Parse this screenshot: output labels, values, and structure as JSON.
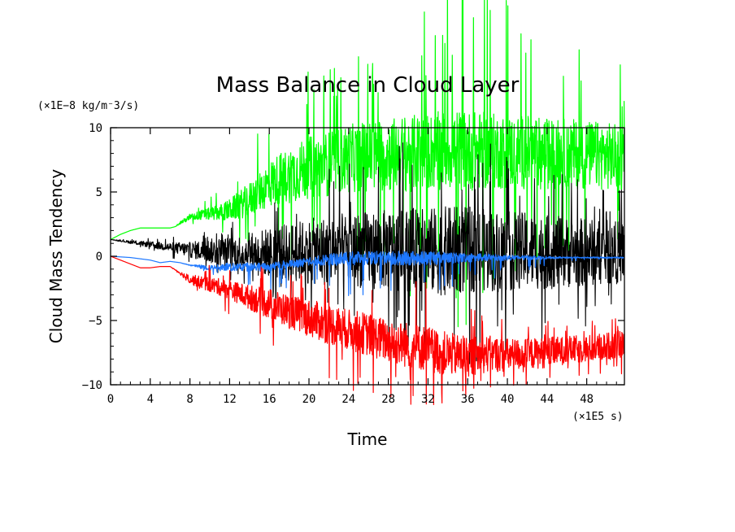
{
  "chart_data": {
    "type": "line",
    "title": "Mass Balance in Cloud Layer",
    "xlabel": "Time",
    "ylabel": "Cloud Mass Tendency",
    "x_unit": "(×1E5 s)",
    "y_unit": "(×1E−8 kg/m⁻3/s)",
    "xlim": [
      0,
      51.8
    ],
    "ylim": [
      -10,
      10
    ],
    "xticks": [
      0,
      4,
      8,
      12,
      16,
      20,
      24,
      28,
      32,
      36,
      40,
      44,
      48
    ],
    "yticks": [
      -10,
      -5,
      0,
      5,
      10
    ],
    "xtick_labels": [
      "0",
      "4",
      "8",
      "12",
      "16",
      "20",
      "24",
      "28",
      "32",
      "36",
      "40",
      "44",
      "48"
    ],
    "ytick_labels": [
      "−10",
      "−5",
      "0",
      "5",
      "10"
    ],
    "grid": false,
    "legend": "none",
    "series": [
      {
        "color": "#00ff00",
        "x": [
          0,
          1,
          2,
          3,
          4,
          5,
          6,
          6.5,
          7,
          8,
          9,
          10,
          11,
          12,
          13,
          14,
          15,
          16,
          17,
          18,
          19,
          20,
          22,
          24,
          26,
          28,
          30,
          32,
          34,
          36,
          38,
          40,
          42,
          44,
          46,
          48,
          50,
          51.8
        ],
        "y": [
          1.3,
          1.7,
          2.0,
          2.2,
          2.2,
          2.2,
          2.2,
          2.3,
          2.6,
          3.0,
          3.2,
          3.3,
          3.4,
          3.6,
          4.0,
          4.4,
          5.0,
          5.6,
          6.0,
          6.3,
          6.6,
          6.9,
          7.2,
          7.6,
          7.8,
          7.9,
          8.0,
          8.1,
          8.3,
          8.2,
          8.2,
          8.1,
          8.1,
          8.0,
          8.0,
          7.9,
          7.8,
          7.6
        ],
        "noise": [
          0,
          0,
          0,
          0,
          0,
          0,
          0,
          0,
          0.1,
          0.2,
          0.3,
          0.4,
          0.5,
          0.7,
          0.9,
          1.1,
          1.3,
          1.5,
          1.7,
          1.8,
          1.9,
          2.0,
          2.1,
          2.2,
          2.3,
          2.4,
          2.5,
          2.5,
          2.6,
          2.6,
          2.5,
          2.4,
          2.4,
          2.3,
          2.3,
          2.2,
          2.2,
          2.1
        ],
        "peak": [
          0,
          0,
          0,
          0,
          0,
          0,
          0,
          0,
          0,
          0.5,
          1,
          1.5,
          2,
          2.5,
          3,
          4,
          5,
          6,
          6.5,
          7,
          7.5,
          8,
          8.5,
          9,
          9.5,
          10,
          11,
          12,
          13,
          18,
          14,
          12,
          11,
          10,
          9,
          8.5,
          8,
          7.5
        ]
      },
      {
        "color": "#000000",
        "x": [
          0,
          2,
          4,
          6,
          8,
          10,
          12,
          14,
          16,
          18,
          20,
          22,
          24,
          26,
          28,
          30,
          32,
          34,
          36,
          38,
          40,
          42,
          44,
          46,
          48,
          50,
          51.8
        ],
        "y": [
          1.3,
          1.1,
          0.9,
          0.7,
          0.5,
          0.4,
          0.3,
          0.3,
          0.3,
          0.3,
          0.4,
          0.4,
          0.5,
          0.5,
          0.5,
          0.5,
          0.4,
          0.4,
          0.5,
          0.4,
          0.4,
          0.4,
          0.3,
          0.3,
          0.3,
          0.3,
          0.3
        ],
        "noise": [
          0,
          0.1,
          0.2,
          0.3,
          0.5,
          0.8,
          1.0,
          1.3,
          1.6,
          1.9,
          2.1,
          2.3,
          2.4,
          2.5,
          2.6,
          2.7,
          2.8,
          2.9,
          2.8,
          2.7,
          2.6,
          2.5,
          2.4,
          2.3,
          2.2,
          2.1,
          2.0
        ],
        "peak": [
          0,
          0.2,
          0.5,
          0.8,
          1.2,
          2,
          2.5,
          3,
          4,
          5,
          6,
          6.5,
          7,
          7.5,
          8,
          8.5,
          9,
          9.5,
          9,
          8.5,
          8,
          7.5,
          7,
          6.5,
          6,
          5.5,
          5
        ]
      },
      {
        "color": "#1e78ff",
        "x": [
          0,
          2,
          4,
          5,
          6,
          7,
          8,
          10,
          12,
          14,
          16,
          18,
          20,
          22,
          24,
          26,
          28,
          30,
          32,
          34,
          36,
          38,
          40,
          42,
          44,
          46,
          48,
          50,
          51.8
        ],
        "y": [
          0,
          -0.1,
          -0.3,
          -0.5,
          -0.4,
          -0.5,
          -0.7,
          -0.9,
          -0.8,
          -0.8,
          -0.8,
          -0.6,
          -0.4,
          -0.2,
          -0.15,
          -0.1,
          -0.1,
          -0.1,
          -0.1,
          -0.1,
          -0.1,
          -0.1,
          -0.1,
          -0.1,
          -0.1,
          -0.1,
          -0.1,
          -0.1,
          -0.1
        ],
        "noise": [
          0,
          0,
          0,
          0,
          0,
          0,
          0.05,
          0.2,
          0.3,
          0.3,
          0.3,
          0.3,
          0.3,
          0.4,
          0.5,
          0.5,
          0.5,
          0.5,
          0.5,
          0.4,
          0.3,
          0.3,
          0.2,
          0.15,
          0.1,
          0.05,
          0.05,
          0.05,
          0.05
        ],
        "peak": [
          0,
          0,
          0,
          0,
          0,
          0,
          0,
          0.5,
          1,
          1.5,
          2,
          2,
          2,
          2.5,
          3,
          3.2,
          3,
          3,
          3,
          2.5,
          2,
          1.8,
          1.5,
          1.2,
          0.8,
          0.4,
          0.2,
          0.1,
          0.1
        ]
      },
      {
        "color": "#ff0000",
        "x": [
          0,
          1,
          2,
          3,
          4,
          5,
          6,
          7,
          8,
          9,
          10,
          12,
          14,
          16,
          18,
          20,
          22,
          24,
          26,
          28,
          30,
          32,
          34,
          36,
          38,
          40,
          42,
          44,
          46,
          48,
          50,
          51.8
        ],
        "y": [
          0,
          -0.3,
          -0.6,
          -0.9,
          -0.9,
          -0.8,
          -0.8,
          -1.3,
          -1.8,
          -2.0,
          -2.2,
          -2.6,
          -3.2,
          -3.7,
          -4.3,
          -4.8,
          -5.3,
          -5.7,
          -6.1,
          -6.6,
          -6.9,
          -7.2,
          -7.6,
          -7.8,
          -7.6,
          -7.7,
          -7.6,
          -7.5,
          -7.3,
          -7.2,
          -7.0,
          -6.8
        ],
        "noise": [
          0,
          0,
          0,
          0,
          0,
          0,
          0,
          0.1,
          0.3,
          0.4,
          0.5,
          0.6,
          0.8,
          1.0,
          1.1,
          1.2,
          1.3,
          1.3,
          1.4,
          1.4,
          1.5,
          1.5,
          1.4,
          1.3,
          1.2,
          1.1,
          1.0,
          1.0,
          0.9,
          0.9,
          0.9,
          0.9
        ],
        "peak": [
          0,
          0,
          0,
          0,
          0,
          0,
          0,
          0,
          0.5,
          1,
          1.5,
          2,
          2.5,
          3,
          3.5,
          4,
          4.5,
          5,
          5,
          5,
          5,
          5.5,
          5,
          4.5,
          3.5,
          3,
          2.5,
          2.5,
          2.5,
          2.5,
          2.5,
          2.5
        ]
      }
    ]
  }
}
